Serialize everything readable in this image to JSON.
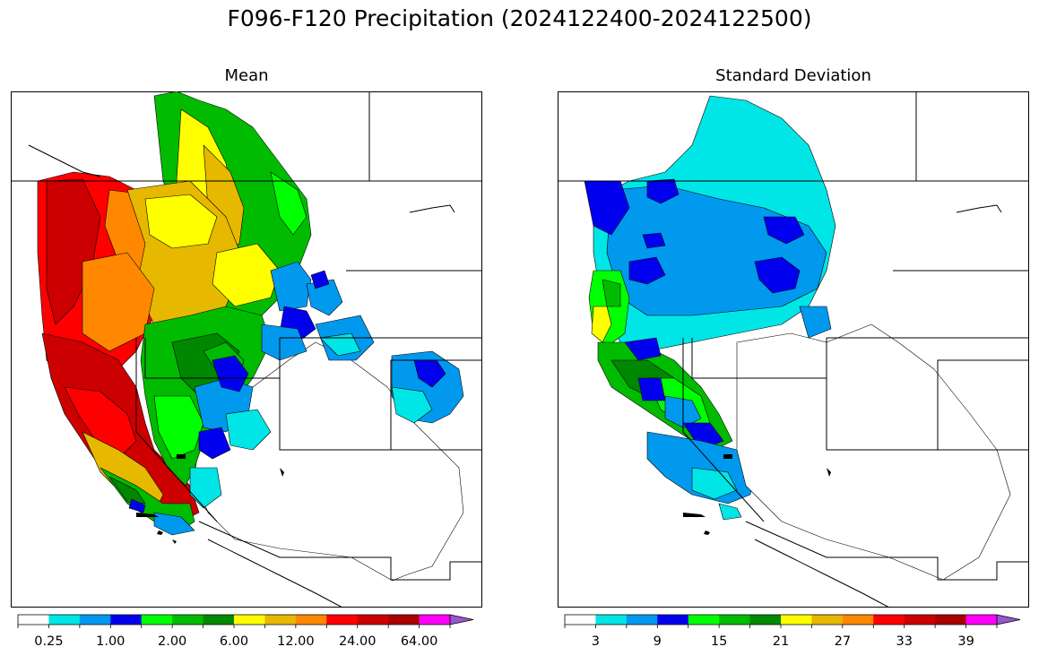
{
  "figure": {
    "title": "F096-F120 Precipitation (2024122400-2024122500)"
  },
  "panels": [
    {
      "title": "Mean",
      "colorbar": {
        "colors": [
          "#ffffff",
          "#00e5e5",
          "#0099ee",
          "#0000ee",
          "#00ff00",
          "#00bb00",
          "#008800",
          "#ffff00",
          "#e6b800",
          "#ff8800",
          "#ff0000",
          "#cc0000",
          "#aa0000",
          "#ff00ff",
          "#9955cc"
        ],
        "tick_labels": [
          "0.25",
          "1.00",
          "2.00",
          "6.00",
          "12.00",
          "24.00",
          "64.00"
        ],
        "tick_bins": [
          1,
          3,
          5,
          7,
          9,
          11,
          13
        ]
      }
    },
    {
      "title": "Standard Deviation",
      "colorbar": {
        "colors": [
          "#ffffff",
          "#00e5e5",
          "#0099ee",
          "#0000ee",
          "#00ff00",
          "#00bb00",
          "#008800",
          "#ffff00",
          "#e6b800",
          "#ff8800",
          "#ff0000",
          "#cc0000",
          "#aa0000",
          "#ff00ff",
          "#9955cc"
        ],
        "tick_labels": [
          "3",
          "9",
          "15",
          "21",
          "27",
          "33",
          "39"
        ],
        "tick_bins": [
          1,
          3,
          5,
          7,
          9,
          11,
          13
        ]
      }
    }
  ]
}
